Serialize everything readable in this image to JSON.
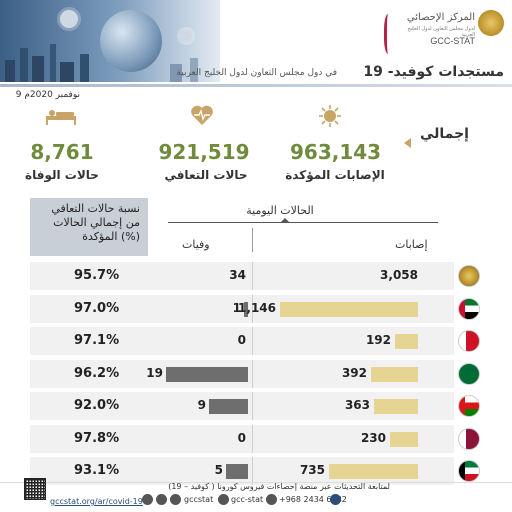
{
  "header": {
    "org_ar": "المركز الإحصائي",
    "org_sub_ar": "لدول مجلس التعاون لدول الخليج العربية",
    "org_latin": "GCC-STAT",
    "title": "مستجدات كوفيد- 19",
    "subtitle": "في دول مجلس التعاون لدول الخليج العربية",
    "date": "9 نوفمبر 2020م"
  },
  "totals": {
    "section_label": "إجمالي",
    "cases": {
      "value": "963,143",
      "label": "الإصابات المؤكدة",
      "icon": "virus-icon"
    },
    "recovered": {
      "value": "921,519",
      "label": "حالات التعافي",
      "icon": "heart-icon"
    },
    "deaths": {
      "value": "8,761",
      "label": "حالات الوفاة",
      "icon": "patient-bed-icon"
    }
  },
  "table": {
    "pct_header": "نسبة حالات التعافي من إجمالي الحالات المؤكدة (%)",
    "daily_header": "الحالات اليومية",
    "cases_header": "إصابات",
    "deaths_header": "وفيات",
    "rows": [
      {
        "country_flag": "gcc-emblem",
        "pct": "95.7%",
        "deaths": "34",
        "cases": "3,058",
        "death_bar": 0,
        "case_bar": 0
      },
      {
        "country_flag": "uae-flag",
        "pct": "97.0%",
        "deaths": "1",
        "cases": "1,146",
        "death_bar": 1,
        "case_bar": 1146
      },
      {
        "country_flag": "bahrain-flag",
        "pct": "97.1%",
        "deaths": "0",
        "cases": "192",
        "death_bar": 0,
        "case_bar": 192
      },
      {
        "country_flag": "saudi-flag",
        "pct": "96.2%",
        "deaths": "19",
        "cases": "392",
        "death_bar": 19,
        "case_bar": 392
      },
      {
        "country_flag": "oman-flag",
        "pct": "92.0%",
        "deaths": "9",
        "cases": "363",
        "death_bar": 9,
        "case_bar": 363
      },
      {
        "country_flag": "qatar-flag",
        "pct": "97.8%",
        "deaths": "0",
        "cases": "230",
        "death_bar": 0,
        "case_bar": 230
      },
      {
        "country_flag": "kuwait-flag",
        "pct": "93.1%",
        "deaths": "5",
        "cases": "735",
        "death_bar": 5,
        "case_bar": 735
      }
    ]
  },
  "footer": {
    "note": "لمتابعة التحديثات عبر منصة إحصاءات فيروس كورونا ( كوفيد – 19)",
    "url": "gccstat.org/ar/covid-19",
    "phone": "+968 2434 6482",
    "handle1": "gcc-stat",
    "handle2": "gccstat"
  },
  "colors": {
    "case_bar": "#e6d592",
    "death_bar": "#6e6e6e",
    "total_value": "#6f8b3b",
    "accent": "#c8a467"
  }
}
